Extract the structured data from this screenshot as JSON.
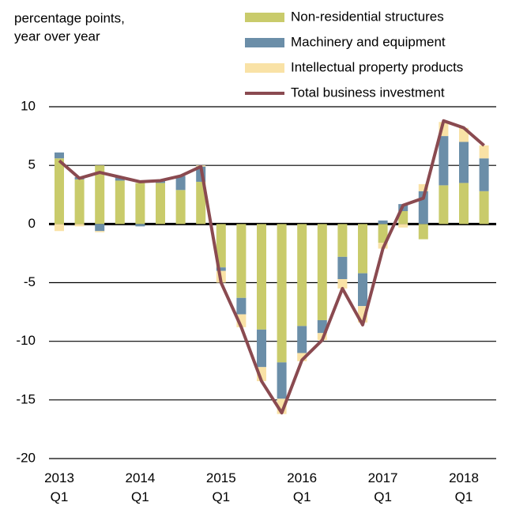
{
  "chart_data": {
    "type": "stacked-bar-line",
    "ylabel": [
      "percentage points,",
      "year over year"
    ],
    "categories": [
      "2013 Q1",
      null,
      null,
      null,
      "2014 Q1",
      null,
      null,
      null,
      "2015 Q1",
      null,
      null,
      null,
      "2016 Q1",
      null,
      null,
      null,
      "2017 Q1",
      null,
      null,
      null,
      "2018 Q1",
      null
    ],
    "series": [
      {
        "name": "Non-residential structures",
        "color": "#c9cb6b",
        "kind": "bar",
        "values": [
          5.6,
          3.8,
          5.0,
          3.7,
          3.5,
          3.5,
          2.9,
          3.6,
          -3.7,
          -6.3,
          -9.0,
          -11.8,
          -8.7,
          -8.2,
          -2.8,
          -4.2,
          -1.6,
          1.1,
          -1.3,
          3.3,
          3.5,
          2.8
        ]
      },
      {
        "name": "Machinery and equipment",
        "color": "#6b8ea8",
        "kind": "bar",
        "values": [
          0.5,
          0.2,
          -0.6,
          0.3,
          -0.2,
          0.2,
          1.2,
          1.3,
          -0.3,
          -1.4,
          -3.2,
          -3.1,
          -2.3,
          -1.1,
          -1.9,
          -2.8,
          0.3,
          0.6,
          2.8,
          4.2,
          3.5,
          2.8
        ]
      },
      {
        "name": "Intellectual property products",
        "color": "#f9e2a6",
        "kind": "bar",
        "values": [
          -0.6,
          -0.2,
          -0.1,
          0,
          0,
          0,
          0,
          0.1,
          -1.0,
          -1.1,
          -1.2,
          -1.3,
          -0.7,
          -0.6,
          -0.8,
          -1.4,
          -0.5,
          -0.3,
          0.6,
          1.2,
          1.2,
          1.1
        ]
      },
      {
        "name": "Total business investment",
        "color": "#8a4a50",
        "kind": "line",
        "values": [
          5.4,
          3.9,
          4.4,
          4.0,
          3.6,
          3.7,
          4.1,
          4.9,
          -5.0,
          -8.8,
          -13.4,
          -16.1,
          -11.6,
          -9.9,
          -5.5,
          -8.6,
          -2.1,
          1.6,
          2.2,
          8.8,
          8.2,
          6.7
        ]
      }
    ],
    "ylim": [
      -20,
      10
    ],
    "yticks": [
      -20,
      -15,
      -10,
      -5,
      0,
      5,
      10
    ],
    "grid": true,
    "legend": "top-right"
  }
}
